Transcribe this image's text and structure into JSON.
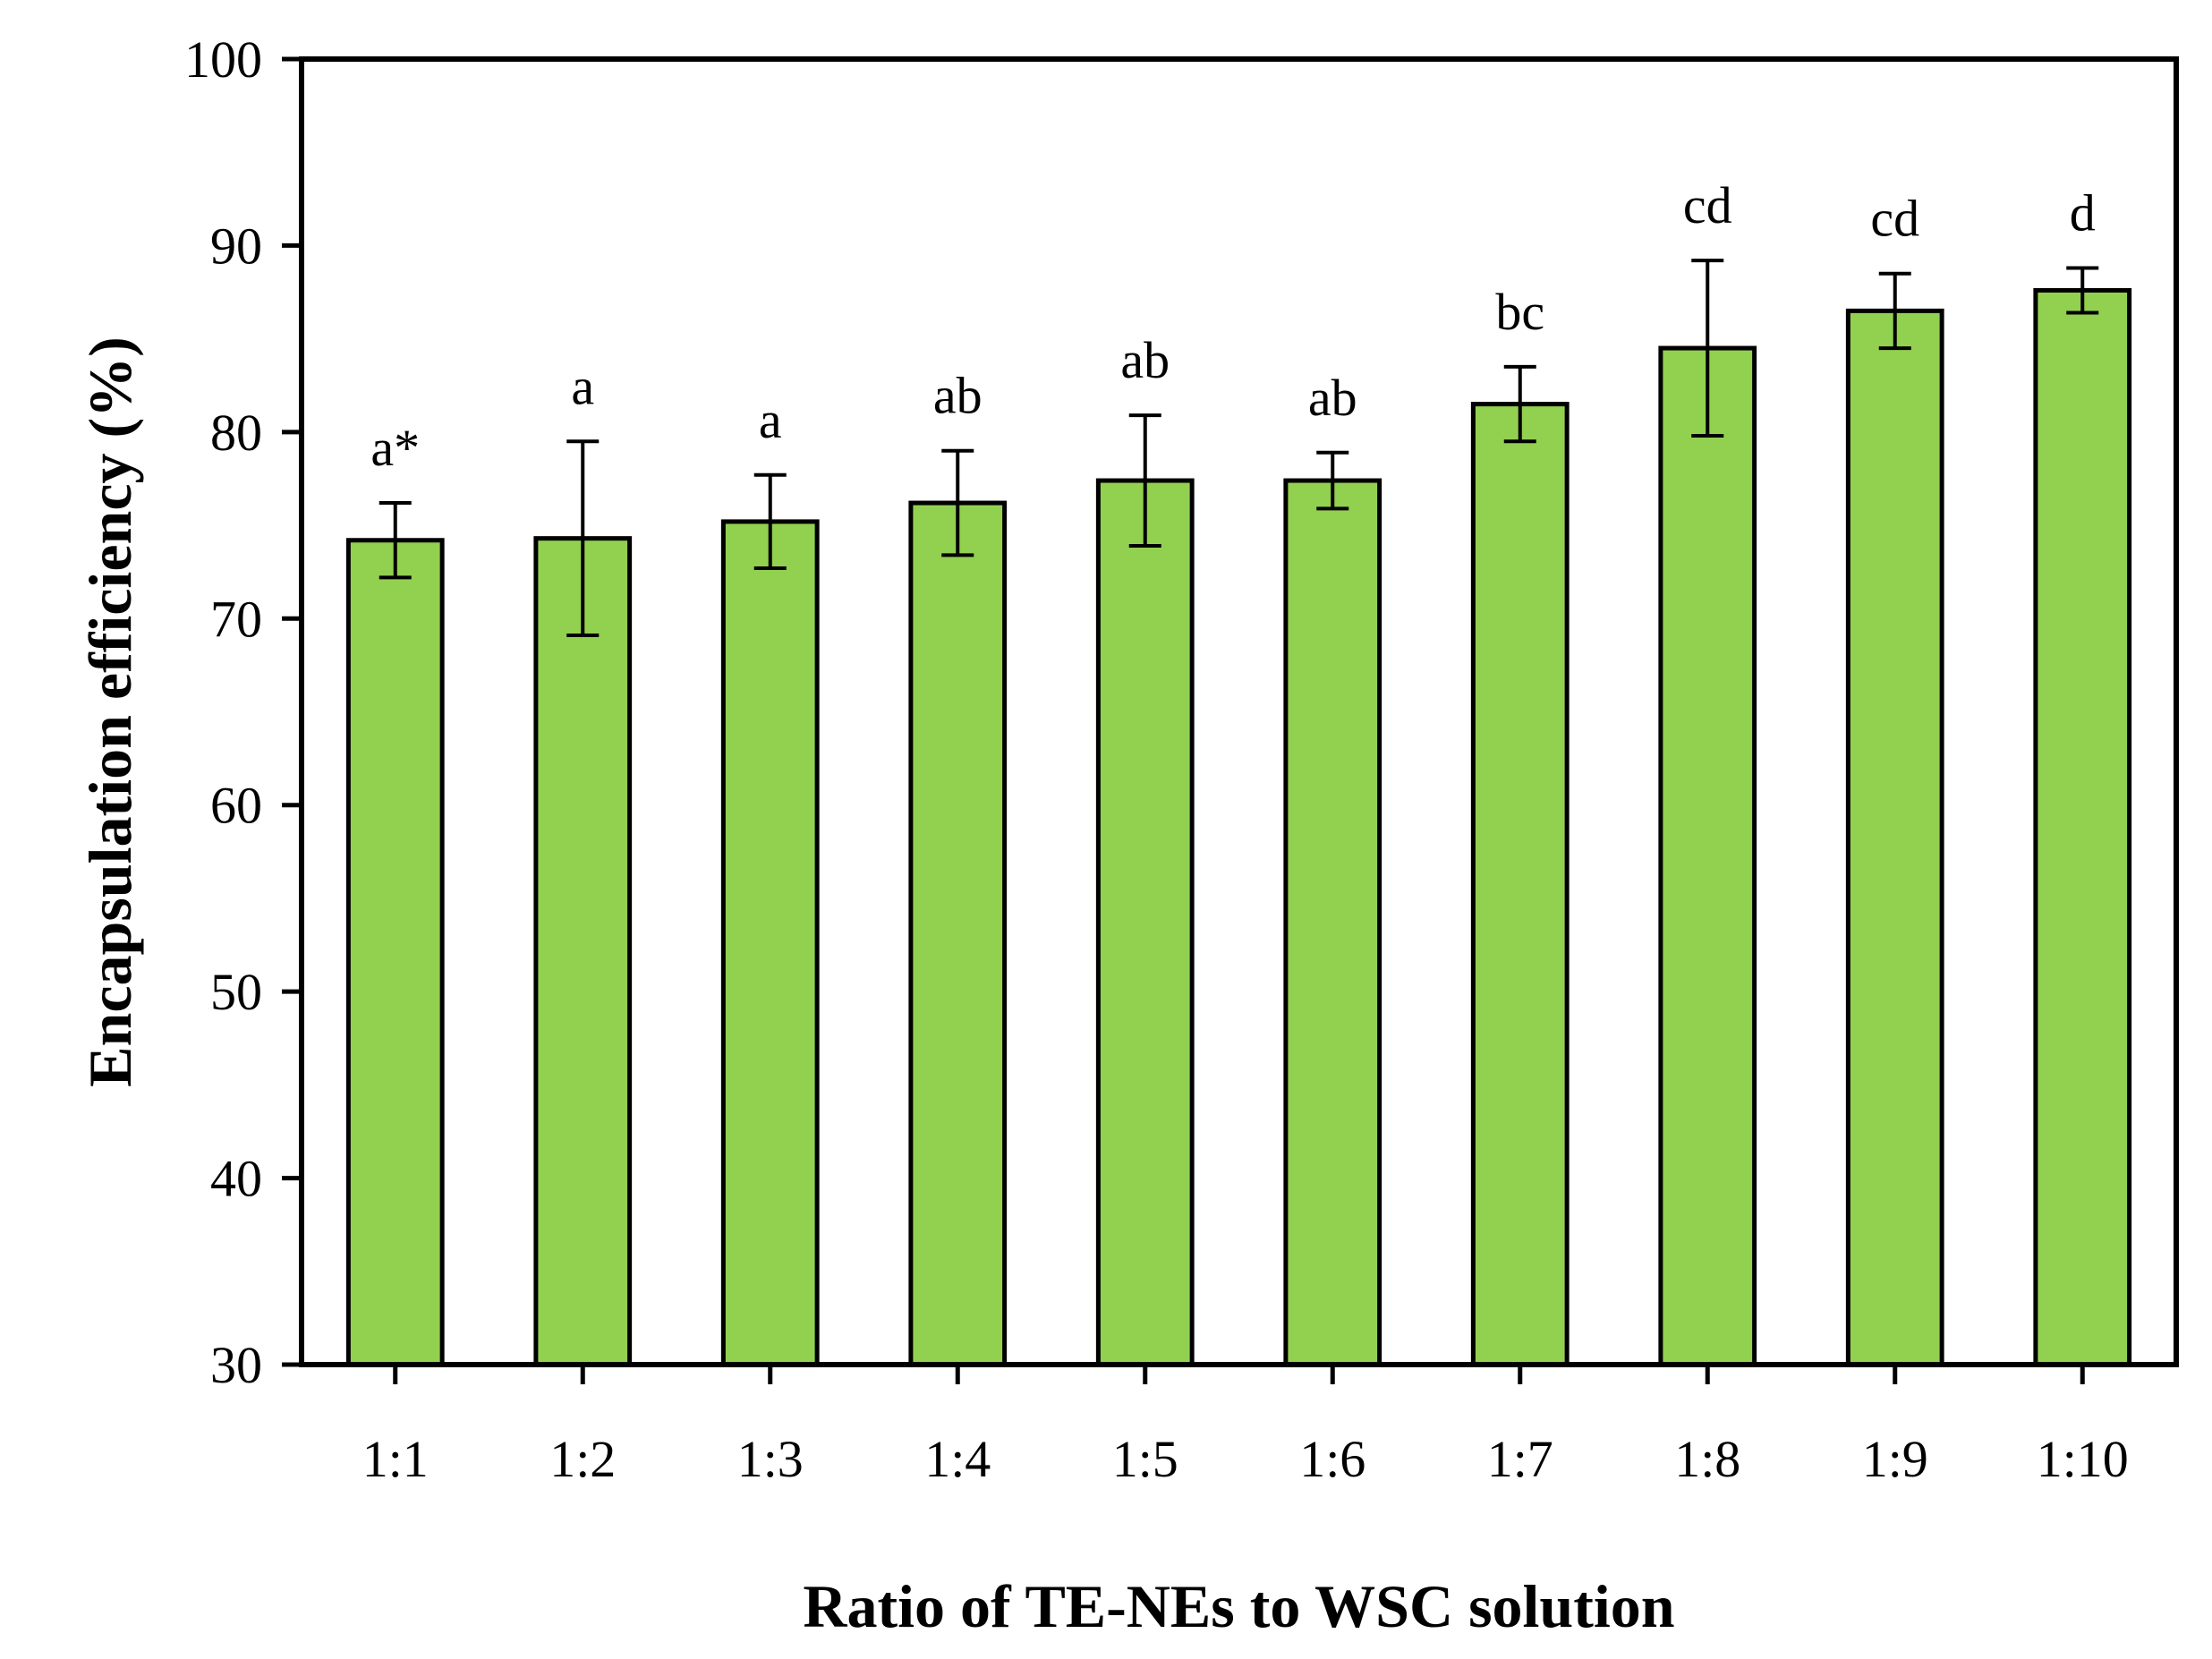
{
  "chart_data": {
    "type": "bar",
    "title": "",
    "xlabel": "Ratio of TE-NEs to WSC solution",
    "ylabel": "Encapsulation efficiency (%)",
    "ylim": [
      30,
      100
    ],
    "yticks": [
      30,
      40,
      50,
      60,
      70,
      80,
      90,
      100
    ],
    "categories": [
      "1:1",
      "1:2",
      "1:3",
      "1:4",
      "1:5",
      "1:6",
      "1:7",
      "1:8",
      "1:9",
      "1:10"
    ],
    "series": [
      {
        "values": [
          74.2,
          74.3,
          75.2,
          76.2,
          77.4,
          77.4,
          81.5,
          84.5,
          86.5,
          87.6
        ],
        "errors": [
          2.0,
          5.2,
          2.5,
          2.8,
          3.5,
          1.5,
          2.0,
          4.7,
          2.0,
          1.2
        ]
      }
    ],
    "annotations": [
      "a*",
      "a",
      "a",
      "ab",
      "ab",
      "ab",
      "bc",
      "cd",
      "cd",
      "d"
    ],
    "bar_color": "#92d050",
    "bar_edge_color": "#000000",
    "grid": false,
    "legend": "none"
  }
}
